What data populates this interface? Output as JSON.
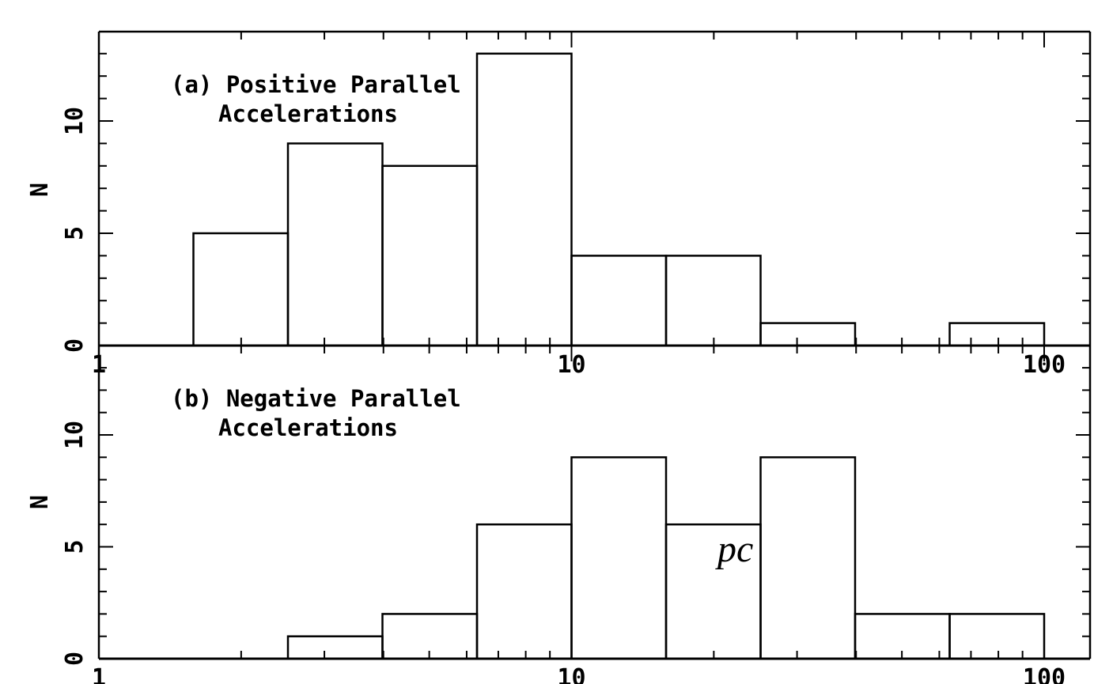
{
  "chart_data": [
    {
      "type": "bar",
      "panel_label": "(a) Positive Parallel",
      "panel_label_line2": "Accelerations",
      "ylabel": "N",
      "xscale": "log",
      "xlim": [
        1,
        110
      ],
      "ylim": [
        0,
        13.5
      ],
      "yticks": [
        "0",
        "5",
        "10"
      ],
      "xticks": [
        "1",
        "10",
        "100"
      ],
      "bin_edges": [
        1.585,
        2.512,
        3.981,
        6.31,
        10,
        15.85,
        25.12,
        39.81,
        63.1,
        100
      ],
      "values": [
        5,
        9,
        8,
        13,
        4,
        4,
        1,
        0,
        1
      ]
    },
    {
      "type": "bar",
      "panel_label": "(b) Negative Parallel",
      "panel_label_line2": "Accelerations",
      "ylabel": "N",
      "xscale": "log",
      "xlim": [
        1,
        110
      ],
      "ylim": [
        0,
        13.5
      ],
      "yticks": [
        "0",
        "5",
        "10"
      ],
      "xticks": [
        "1",
        "10",
        "100"
      ],
      "bin_edges": [
        1.585,
        2.512,
        3.981,
        6.31,
        10,
        15.85,
        25.12,
        39.81,
        63.1,
        100
      ],
      "values": [
        0,
        1,
        2,
        6,
        9,
        6,
        9,
        2,
        2
      ],
      "annotation": "pc"
    }
  ]
}
